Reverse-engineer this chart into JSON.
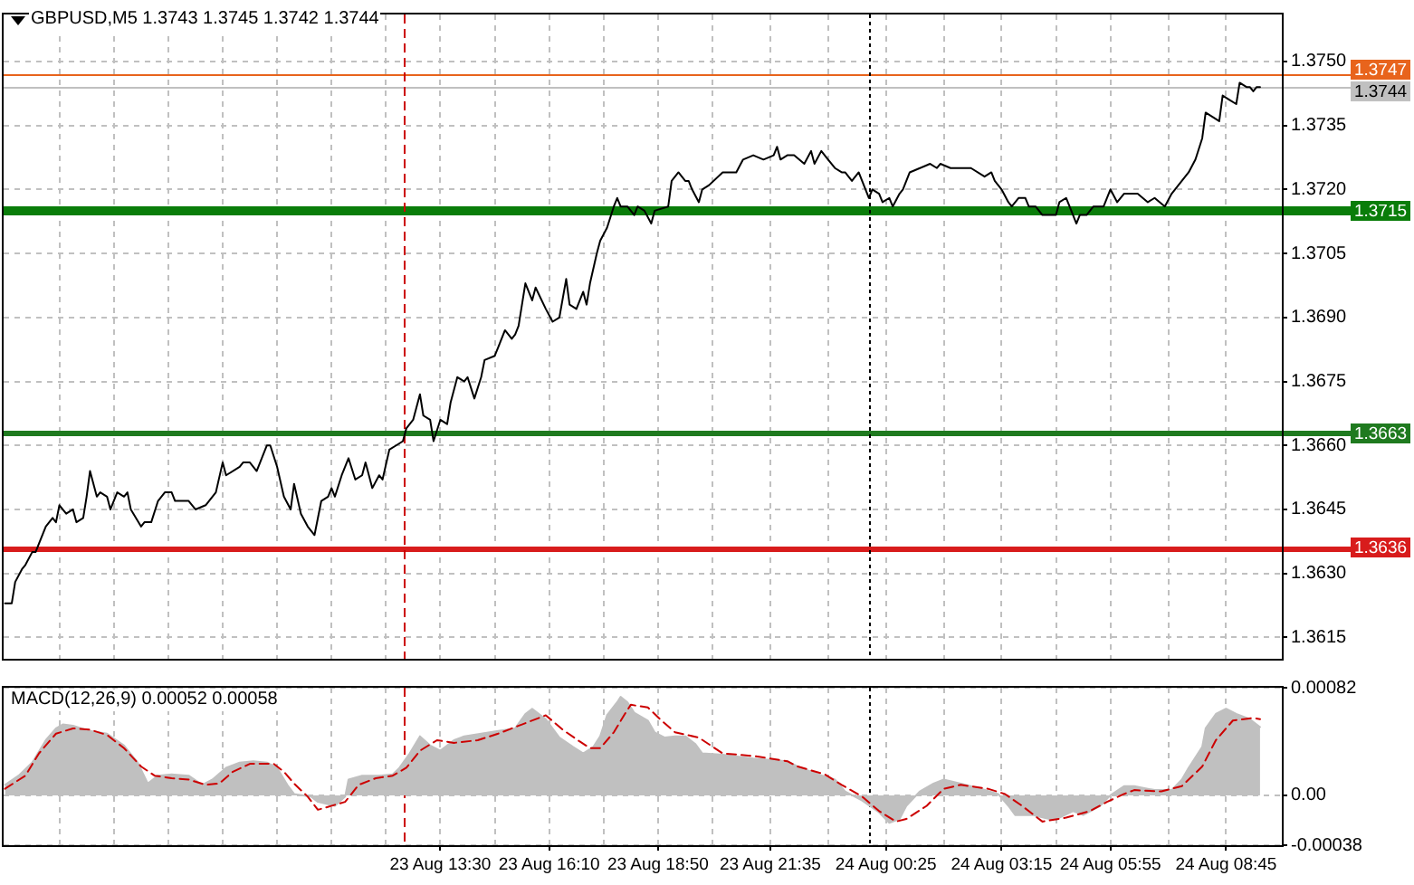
{
  "chart_data": [
    {
      "type": "line",
      "title": "GBPUSD,M5 1.3743 1.3745 1.3742 1.3744",
      "x": [
        "--08-23T02:50",
        "--08-23T03:00",
        "--08-23T03:05",
        "--08-23T03:15",
        "--08-23T03:20",
        "--08-23T03:30",
        "--08-23T03:35",
        "--08-23T03:40",
        "--08-23T03:50",
        "--08-23T04:00",
        "--08-23T04:05",
        "--08-23T04:10",
        "--08-23T04:20",
        "--08-23T04:30",
        "--08-23T04:35",
        "--08-23T04:45",
        "--08-23T04:50",
        "--08-23T04:55",
        "--08-23T05:05",
        "--08-23T05:10",
        "--08-23T05:20",
        "--08-23T05:25",
        "--08-23T05:35",
        "--08-23T05:45",
        "--08-23T05:50",
        "--08-23T05:55",
        "--08-23T06:10",
        "--08-23T06:15",
        "--08-23T06:25",
        "--08-23T06:35",
        "--08-23T06:45",
        "--08-23T06:55",
        "--08-23T07:00",
        "--08-23T07:20",
        "--08-23T07:30",
        "--08-23T07:45",
        "--08-23T07:55",
        "--08-23T08:00",
        "--08-23T08:10",
        "--08-23T08:15",
        "--08-23T08:35",
        "--08-23T08:40",
        "--08-23T08:50",
        "--08-23T09:00",
        "--08-23T09:05",
        "--08-23T09:15",
        "--08-23T09:20",
        "--08-23T09:30",
        "--08-23T09:40",
        "--08-23T09:50",
        "--08-23T09:55",
        "--08-23T10:05",
        "--08-23T10:15",
        "--08-23T10:25",
        "--08-23T10:35",
        "--08-23T10:45",
        "--08-23T10:50",
        "--08-23T10:55",
        "--08-23T11:05",
        "--08-23T11:15",
        "--08-23T11:25",
        "--08-23T11:35",
        "--08-23T11:40",
        "--08-23T11:50",
        "--08-23T12:00",
        "--08-23T12:05",
        "--08-23T12:15",
        "--08-23T12:25",
        "--08-23T12:35",
        "--08-23T12:40",
        "--08-23T12:50",
        "--08-23T13:00",
        "--08-23T13:05",
        "--08-23T13:15",
        "--08-23T13:20",
        "--08-23T13:30",
        "--08-23T13:40",
        "--08-23T13:45",
        "--08-23T13:55",
        "--08-23T14:05",
        "--08-23T14:10",
        "--08-23T14:20",
        "--08-23T14:30",
        "--08-23T14:35",
        "--08-23T14:50",
        "--08-23T14:55",
        "--08-23T15:05",
        "--08-23T15:15",
        "--08-23T15:20",
        "--08-23T15:25",
        "--08-23T15:35",
        "--08-23T15:45",
        "--08-23T15:50",
        "--08-23T16:05",
        "--08-23T16:15",
        "--08-23T16:25",
        "--08-23T16:35",
        "--08-23T16:40",
        "--08-23T16:50",
        "--08-23T17:00",
        "--08-23T17:05",
        "--08-23T17:10",
        "--08-23T17:20",
        "--08-23T17:25",
        "--08-23T17:35",
        "--08-23T17:45",
        "--08-23T17:50",
        "--08-23T17:55",
        "--08-23T18:05",
        "--08-23T18:15",
        "--08-23T18:20",
        "--08-23T18:30",
        "--08-23T18:40",
        "--08-23T18:45",
        "--08-23T19:05",
        "--08-23T19:10",
        "--08-23T19:20",
        "--08-23T19:30",
        "--08-23T19:35",
        "--08-23T19:40",
        "--08-23T19:50",
        "--08-23T19:55",
        "--08-23T20:05",
        "--08-23T20:25",
        "--08-23T20:45",
        "--08-23T20:55",
        "--08-23T21:10",
        "--08-23T21:25",
        "--08-23T21:40",
        "--08-23T21:45",
        "--08-23T21:50",
        "--08-23T22:00",
        "--08-23T22:10",
        "--08-23T22:25",
        "--08-23T22:35",
        "--08-23T22:40",
        "--08-23T22:50",
        "--08-23T23:00",
        "--08-23T23:10",
        "--08-23T23:20",
        "--08-23T23:25",
        "--08-23T23:35",
        "--08-23T23:45",
        "--08-23T23:55",
        "--08-24T00:00",
        "--08-24T00:05",
        "--08-24T00:15",
        "--08-24T00:20",
        "--08-24T00:30",
        "--08-24T00:35",
        "--08-24T00:45",
        "--08-24T00:50",
        "--08-24T01:00",
        "--08-24T01:15",
        "--08-24T01:30",
        "--08-24T01:40",
        "--08-24T01:45",
        "--08-24T02:00",
        "--08-24T02:30",
        "--08-24T02:50",
        "--08-24T03:00",
        "--08-24T03:05",
        "--08-24T03:15",
        "--08-24T03:25",
        "--08-24T03:30",
        "--08-24T03:40",
        "--08-24T03:50",
        "--08-24T03:55",
        "--08-24T04:05",
        "--08-24T04:15",
        "--08-24T04:20",
        "--08-24T04:35",
        "--08-24T04:40",
        "--08-24T04:50",
        "--08-24T04:55",
        "--08-24T05:05",
        "--08-24T05:10",
        "--08-24T05:20",
        "--08-24T05:30",
        "--08-24T05:45",
        "--08-24T05:55",
        "--08-24T06:05",
        "--08-24T06:15",
        "--08-24T06:35",
        "--08-24T06:50",
        "--08-24T07:00",
        "--08-24T07:15",
        "--08-24T07:25",
        "--08-24T07:35",
        "--08-24T07:40",
        "--08-24T07:50",
        "--08-24T08:00",
        "--08-24T08:10",
        "--08-24T08:15",
        "--08-24T08:25",
        "--08-24T08:35",
        "--08-24T08:40",
        "--08-24T08:50",
        "--08-24T09:00",
        "--08-24T09:05",
        "--08-24T09:15",
        "--08-24T09:20",
        "--08-24T09:25",
        "--08-24T09:30",
        "--08-24T09:35"
      ],
      "values": [
        1.3623,
        1.3623,
        1.3628,
        1.3631,
        1.3632,
        1.3635,
        1.3635,
        1.3637,
        1.3641,
        1.3643,
        1.3642,
        1.3646,
        1.3644,
        1.3645,
        1.3642,
        1.3643,
        1.3648,
        1.3654,
        1.3648,
        1.3649,
        1.3648,
        1.3645,
        1.3649,
        1.3648,
        1.3649,
        1.3645,
        1.3641,
        1.3642,
        1.3642,
        1.3647,
        1.3649,
        1.3649,
        1.3647,
        1.3647,
        1.3645,
        1.3646,
        1.3648,
        1.3649,
        1.3656,
        1.3653,
        1.3655,
        1.3656,
        1.3656,
        1.3654,
        1.3656,
        1.366,
        1.366,
        1.3655,
        1.3648,
        1.3645,
        1.3651,
        1.3644,
        1.3641,
        1.3639,
        1.3647,
        1.3648,
        1.365,
        1.3648,
        1.3653,
        1.3657,
        1.3652,
        1.3653,
        1.3656,
        1.365,
        1.3653,
        1.3652,
        1.3659,
        1.366,
        1.3661,
        1.3664,
        1.3666,
        1.3672,
        1.3667,
        1.3666,
        1.3661,
        1.3666,
        1.3665,
        1.367,
        1.3676,
        1.3675,
        1.3676,
        1.3671,
        1.3676,
        1.368,
        1.3681,
        1.3683,
        1.3687,
        1.3685,
        1.3686,
        1.3688,
        1.3698,
        1.3694,
        1.3697,
        1.3692,
        1.3689,
        1.369,
        1.3699,
        1.3693,
        1.3692,
        1.3696,
        1.3693,
        1.3698,
        1.3705,
        1.3708,
        1.3711,
        1.3716,
        1.3718,
        1.3716,
        1.3716,
        1.3714,
        1.3716,
        1.3715,
        1.3712,
        1.3715,
        1.3716,
        1.3722,
        1.3724,
        1.3722,
        1.3722,
        1.372,
        1.3717,
        1.372,
        1.3721,
        1.3724,
        1.3724,
        1.3727,
        1.3728,
        1.3727,
        1.3728,
        1.373,
        1.3727,
        1.3728,
        1.3728,
        1.3726,
        1.3729,
        1.3726,
        1.3729,
        1.3727,
        1.3725,
        1.3724,
        1.3724,
        1.3722,
        1.3724,
        1.372,
        1.3718,
        1.372,
        1.3719,
        1.3717,
        1.3718,
        1.3716,
        1.3719,
        1.372,
        1.3724,
        1.3725,
        1.3726,
        1.3725,
        1.3726,
        1.3725,
        1.3725,
        1.3723,
        1.3724,
        1.3722,
        1.372,
        1.3717,
        1.3716,
        1.3718,
        1.3718,
        1.3716,
        1.3716,
        1.3714,
        1.3714,
        1.3714,
        1.3717,
        1.3718,
        1.3716,
        1.3712,
        1.3714,
        1.3714,
        1.3716,
        1.3716,
        1.372,
        1.3717,
        1.3719,
        1.3719,
        1.3717,
        1.3718,
        1.3716,
        1.3719,
        1.3721,
        1.3722,
        1.3724,
        1.3727,
        1.3732,
        1.3738,
        1.3737,
        1.3736,
        1.3742,
        1.3741,
        1.374,
        1.3745,
        1.3744,
        1.3744,
        1.3743,
        1.3744,
        1.3744
      ],
      "color": "#000000",
      "xlim": [
        "--08-23T02:48",
        "--08-24T10:07"
      ],
      "xticks": [
        "--08-23T04:10",
        "--08-23T05:30",
        "--08-23T06:50",
        "--08-23T08:10",
        "--08-23T09:30",
        "--08-23T10:50",
        "--08-23T12:10",
        "--08-23T13:30",
        "--08-23T14:50",
        "--08-23T16:10",
        "--08-23T17:30",
        "--08-23T18:50",
        "--08-23T20:10",
        "--08-23T21:35",
        "--08-23T23:00",
        "--08-24T00:25",
        "--08-24T01:50",
        "--08-24T03:15",
        "--08-24T04:35",
        "--08-24T05:55",
        "--08-24T07:20",
        "--08-24T08:45"
      ],
      "ylim": [
        1.361,
        1.3761
      ],
      "yticks": [
        1.3615,
        {
          "value": 1.363,
          "label": "1.3630"
        },
        1.3645,
        {
          "value": 1.366,
          "label": "1.3660"
        },
        1.3675,
        {
          "value": 1.369,
          "label": "1.3690"
        },
        1.3705,
        {
          "value": 1.372,
          "label": "1.3720"
        },
        1.3735,
        {
          "value": 1.375,
          "label": "1.3750"
        }
      ],
      "grid": true,
      "tick_labels": "y",
      "ref_lines": [
        {
          "axis": "y",
          "value": 1.3747,
          "label": "1.3747",
          "color": "#e8641c"
        },
        {
          "axis": "y",
          "value": 1.3744,
          "label": "1.3744",
          "color": "#c0c0c0"
        },
        {
          "axis": "y",
          "value": 1.3715,
          "label": "1.3715",
          "color": "#0a7d0a"
        },
        {
          "axis": "y",
          "value": 1.3663,
          "label": "1.3663",
          "color": "#1f7a1f"
        },
        {
          "axis": "y",
          "value": 1.3636,
          "label": "1.3636",
          "color": "#d81c1c"
        },
        {
          "axis": "x",
          "value": "--08-23T12:35",
          "color": "#cc0000",
          "line_style": "dashed"
        },
        {
          "axis": "x",
          "value": "--08-24T00:00",
          "color": "#000000",
          "line_style": "dotted"
        }
      ]
    },
    {
      "type": "area",
      "title": "MACD(12,26,9) 0.00052 0.00058",
      "series": [
        {
          "color": "#c0c0c0",
          "x": [
            "--08-23T02:50",
            "--08-23T03:10",
            "--08-23T03:30",
            "--08-23T03:50",
            "--08-23T04:05",
            "--08-23T04:15",
            "--08-23T04:30",
            "--08-23T04:55",
            "--08-23T05:20",
            "--08-23T05:45",
            "--08-23T06:05",
            "--08-23T06:20",
            "--08-23T06:35",
            "--08-23T06:55",
            "--08-23T07:20",
            "--08-23T07:40",
            "--08-23T07:55",
            "--08-23T08:15",
            "--08-23T08:35",
            "--08-23T08:55",
            "--08-23T09:15",
            "--08-23T09:30",
            "--08-23T09:45",
            "--08-23T09:55",
            "--08-23T10:20",
            "--08-23T10:30",
            "--08-23T10:55",
            "--08-23T11:10",
            "--08-23T11:15",
            "--08-23T11:35",
            "--08-23T12:00",
            "--08-23T12:20",
            "--08-23T12:30",
            "--08-23T12:45",
            "--08-23T13:00",
            "--08-23T13:15",
            "--08-23T13:30",
            "--08-23T13:50",
            "--08-23T14:05",
            "--08-23T14:30",
            "--08-23T14:55",
            "--08-23T15:20",
            "--08-23T15:35",
            "--08-23T15:45",
            "--08-23T16:05",
            "--08-23T16:25",
            "--08-23T16:45",
            "--08-23T17:00",
            "--08-23T17:15",
            "--08-23T17:25",
            "--08-23T17:35",
            "--08-23T17:50",
            "--08-23T17:55",
            "--08-23T18:05",
            "--08-23T18:15",
            "--08-23T18:35",
            "--08-23T18:45",
            "--08-23T19:00",
            "--08-23T19:15",
            "--08-23T19:30",
            "--08-23T19:45",
            "--08-23T19:55",
            "--08-23T20:25",
            "--08-23T21:10",
            "--08-23T22:00",
            "--08-23T22:15",
            "--08-23T22:45",
            "--08-23T23:10",
            "--08-23T23:25",
            "--08-23T23:50",
            "--08-24T00:15",
            "--08-24T00:30",
            "--08-24T00:45",
            "--08-24T00:55",
            "--08-24T01:15",
            "--08-24T01:35",
            "--08-24T01:50",
            "--08-24T02:15",
            "--08-24T02:45",
            "--08-24T03:10",
            "--08-24T03:25",
            "--08-24T03:35",
            "--08-24T04:00",
            "--08-24T04:25",
            "--08-24T04:40",
            "--08-24T05:00",
            "--08-24T05:15",
            "--08-24T05:40",
            "--08-24T05:55",
            "--08-24T06:15",
            "--08-24T06:30",
            "--08-24T07:00",
            "--08-24T07:25",
            "--08-24T07:40",
            "--08-24T07:50",
            "--08-24T08:10",
            "--08-24T08:15",
            "--08-24T08:30",
            "--08-24T08:45",
            "--08-24T09:00",
            "--08-24T09:20",
            "--08-24T09:35"
          ],
          "values": [
            8e-05,
            0.00015,
            0.00025,
            0.00042,
            0.00051,
            0.00054,
            0.00053,
            0.00049,
            0.00047,
            0.00038,
            0.00025,
            9e-05,
            0.00015,
            0.00016,
            0.00015,
            8e-05,
            0.00012,
            0.00021,
            0.00025,
            0.00026,
            0.00025,
            0.00021,
            8e-05,
            1e-05,
            -1e-05,
            -5e-05,
            -8e-05,
            -1e-05,
            0.00012,
            0.00015,
            0.00015,
            0.00016,
            0.00021,
            0.00032,
            0.00045,
            0.00038,
            0.00034,
            0.00042,
            0.00045,
            0.00047,
            0.00049,
            0.00051,
            0.00062,
            0.00066,
            0.00058,
            0.00044,
            0.00037,
            0.00032,
            0.00037,
            0.00045,
            0.00061,
            0.00071,
            0.00075,
            0.00071,
            0.00063,
            0.00057,
            0.00048,
            0.00044,
            0.00045,
            0.00045,
            0.00039,
            0.00032,
            0.00031,
            0.00028,
            0.00026,
            0.00022,
            0.00016,
            0.00012,
            3e-05,
            -4e-05,
            -0.00013,
            -0.00021,
            -0.00018,
            -8e-05,
            3e-05,
            9e-05,
            0.00012,
            9e-05,
            5e-05,
            1e-05,
            -8e-05,
            -0.00015,
            -0.00015,
            -0.00018,
            -0.00017,
            -0.00012,
            -0.00015,
            -8e-05,
            0,
            7e-05,
            7e-05,
            4e-05,
            4e-05,
            0.00012,
            0.00021,
            0.00037,
            0.00051,
            0.00062,
            0.00066,
            0.00062,
            0.00058,
            0.00052
          ]
        },
        {
          "type": "line",
          "color": "#cc0000",
          "line_style": "dashed",
          "x": [
            "--08-23T02:50",
            "--08-23T03:20",
            "--08-23T03:40",
            "--08-23T04:05",
            "--08-23T04:30",
            "--08-23T04:55",
            "--08-23T05:20",
            "--08-23T05:45",
            "--08-23T06:10",
            "--08-23T06:30",
            "--08-23T06:55",
            "--08-23T07:20",
            "--08-23T07:45",
            "--08-23T08:05",
            "--08-23T08:25",
            "--08-23T08:50",
            "--08-23T09:25",
            "--08-23T09:40",
            "--08-23T09:55",
            "--08-23T10:15",
            "--08-23T10:30",
            "--08-23T11:10",
            "--08-23T11:30",
            "--08-23T11:55",
            "--08-23T12:20",
            "--08-23T12:40",
            "--08-23T13:00",
            "--08-23T13:25",
            "--08-23T13:50",
            "--08-23T14:25",
            "--08-23T14:55",
            "--08-23T15:30",
            "--08-23T16:05",
            "--08-23T16:30",
            "--08-23T16:55",
            "--08-23T17:10",
            "--08-23T17:25",
            "--08-23T17:45",
            "--08-23T18:00",
            "--08-23T18:10",
            "--08-23T18:35",
            "--08-23T18:55",
            "--08-23T19:15",
            "--08-23T19:50",
            "--08-23T20:25",
            "--08-23T21:10",
            "--08-23T22:00",
            "--08-23T22:15",
            "--08-23T22:55",
            "--08-23T23:20",
            "--08-23T23:50",
            "--08-24T00:15",
            "--08-24T00:40",
            "--08-24T00:55",
            "--08-24T01:25",
            "--08-24T01:50",
            "--08-24T02:15",
            "--08-24T02:55",
            "--08-24T03:20",
            "--08-24T03:45",
            "--08-24T04:15",
            "--08-24T04:50",
            "--08-24T05:25",
            "--08-24T05:50",
            "--08-24T06:15",
            "--08-24T06:30",
            "--08-24T07:10",
            "--08-24T07:40",
            "--08-24T08:10",
            "--08-24T08:30",
            "--08-24T08:55",
            "--08-24T09:25",
            "--08-24T09:35"
          ],
          "values": [
            5e-05,
            0.00015,
            0.00032,
            0.00047,
            0.00051,
            0.0005,
            0.00046,
            0.00036,
            0.00022,
            0.00015,
            0.00013,
            0.00012,
            8e-05,
            9e-05,
            0.00018,
            0.00024,
            0.00024,
            0.00018,
            9e-05,
            -1e-05,
            -0.00011,
            -5e-05,
            8e-05,
            0.00013,
            0.00015,
            0.00021,
            0.00034,
            0.00042,
            0.0004,
            0.00042,
            0.00047,
            0.00054,
            0.00061,
            0.0005,
            0.00041,
            0.00036,
            0.00036,
            0.00048,
            0.00061,
            0.00069,
            0.00067,
            0.00057,
            0.00048,
            0.00044,
            0.00032,
            0.0003,
            0.00026,
            0.00022,
            0.00016,
            8e-05,
            -1e-05,
            -0.00012,
            -0.0002,
            -0.00018,
            -8e-05,
            5e-05,
            8e-05,
            5e-05,
            1e-05,
            -8e-05,
            -0.0002,
            -0.00017,
            -0.00012,
            -5e-05,
            1e-05,
            4e-05,
            3e-05,
            7e-05,
            0.00022,
            0.00042,
            0.00057,
            0.00059,
            0.00058
          ]
        }
      ],
      "xlim": [
        "--08-23T02:48",
        "--08-24T10:07"
      ],
      "xticks": [
        {
          "value": "--08-23T04:10",
          "label": null
        },
        {
          "value": "--08-23T05:30",
          "label": null
        },
        {
          "value": "--08-23T06:50",
          "label": null
        },
        {
          "value": "--08-23T08:10",
          "label": null
        },
        {
          "value": "--08-23T09:30",
          "label": null
        },
        {
          "value": "--08-23T10:50",
          "label": null
        },
        {
          "value": "--08-23T12:10",
          "label": null
        },
        {
          "value": "--08-23T13:30",
          "label": "23 Aug 13:30"
        },
        {
          "value": "--08-23T14:50",
          "label": null
        },
        {
          "value": "--08-23T16:10",
          "label": "23 Aug 16:10"
        },
        {
          "value": "--08-23T17:30",
          "label": null
        },
        {
          "value": "--08-23T18:50",
          "label": "23 Aug 18:50"
        },
        {
          "value": "--08-23T20:10",
          "label": null
        },
        {
          "value": "--08-23T21:35",
          "label": "23 Aug 21:35"
        },
        {
          "value": "--08-23T23:00",
          "label": null
        },
        {
          "value": "--08-24T00:25",
          "label": "24 Aug 00:25"
        },
        {
          "value": "--08-24T01:50",
          "label": null
        },
        {
          "value": "--08-24T03:15",
          "label": "24 Aug 03:15"
        },
        {
          "value": "--08-24T04:35",
          "label": null
        },
        {
          "value": "--08-24T05:55",
          "label": "24 Aug 05:55"
        },
        {
          "value": "--08-24T07:20",
          "label": null
        },
        {
          "value": "--08-24T08:45",
          "label": "24 Aug 08:45"
        }
      ],
      "ylim": [
        -0.00038,
        0.00082
      ],
      "yticks": [
        -0.00038,
        {
          "value": 0,
          "label": "0.00"
        },
        0.00082
      ],
      "grid": true,
      "ref_lines": [
        {
          "axis": "x",
          "value": "--08-23T12:35",
          "color": "#cc0000",
          "line_style": "dashed"
        },
        {
          "axis": "x",
          "value": "--08-24T00:00",
          "color": "#000000",
          "line_style": "dotted"
        }
      ]
    }
  ]
}
